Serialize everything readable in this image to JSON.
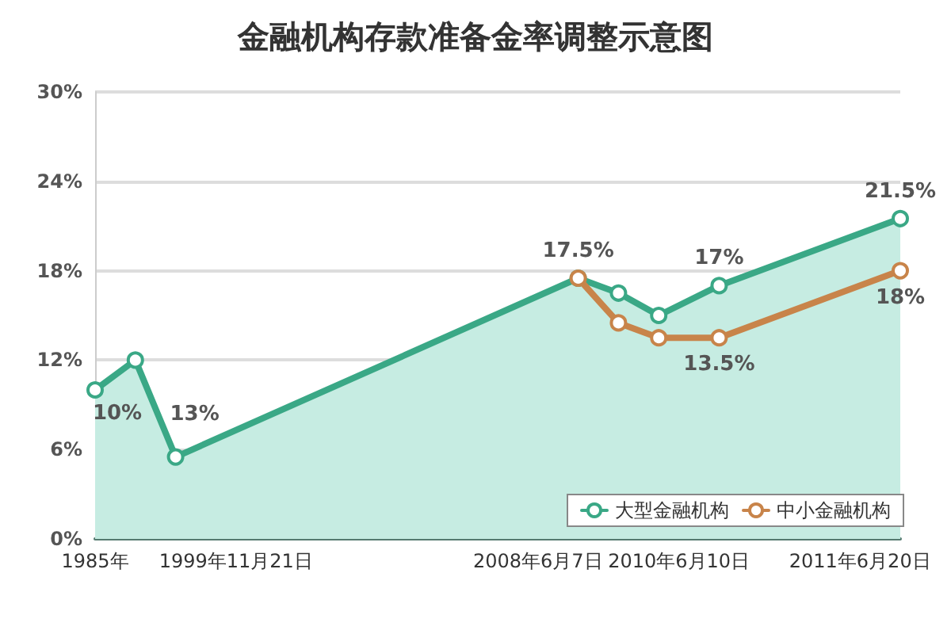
{
  "chart_data": {
    "type": "line",
    "title": "金融机构存款准备金率调整示意图",
    "categories": [
      "1985年",
      null,
      null,
      null,
      null,
      null,
      null,
      "1999年11月21日",
      null,
      null,
      null,
      null,
      null,
      null,
      null,
      null,
      null,
      null,
      null,
      null,
      null,
      null,
      "2008年6月7日",
      null,
      null,
      null,
      null,
      null,
      null,
      "2010年6月10日",
      null,
      null,
      null,
      null,
      null,
      null,
      null,
      null,
      "2011年6月20日",
      null,
      null
    ],
    "series": [
      {
        "name": "大型金融机构",
        "type": "area",
        "color": "#3aa886",
        "values": [
          10,
          null,
          12,
          null,
          5.5,
          null,
          null,
          null,
          null,
          null,
          null,
          null,
          null,
          null,
          null,
          null,
          null,
          null,
          null,
          null,
          null,
          null,
          null,
          null,
          17.5,
          null,
          16.5,
          null,
          15,
          null,
          null,
          17,
          null,
          null,
          null,
          null,
          null,
          null,
          null,
          null,
          21.5
        ],
        "value_labels": [
          "10%",
          null,
          null,
          null,
          null,
          null,
          null,
          null,
          null,
          null,
          null,
          null,
          null,
          null,
          null,
          null,
          null,
          null,
          null,
          null,
          null,
          null,
          null,
          null,
          "17.5%",
          null,
          null,
          null,
          null,
          null,
          null,
          "17%",
          null,
          null,
          null,
          null,
          null,
          null,
          null,
          null,
          "21.5%"
        ]
      },
      {
        "name": "中小金融机构",
        "color": "#c8844a",
        "values": [
          null,
          null,
          null,
          null,
          null,
          null,
          null,
          null,
          null,
          null,
          null,
          null,
          null,
          null,
          null,
          null,
          null,
          null,
          null,
          null,
          null,
          null,
          null,
          null,
          17.5,
          null,
          14.5,
          null,
          13.5,
          null,
          null,
          13.5,
          null,
          null,
          null,
          null,
          null,
          null,
          null,
          null,
          18
        ],
        "value_labels": [
          null,
          null,
          null,
          null,
          null,
          null,
          null,
          null,
          null,
          null,
          null,
          null,
          null,
          null,
          null,
          null,
          null,
          null,
          null,
          null,
          null,
          null,
          null,
          null,
          null,
          null,
          null,
          null,
          null,
          null,
          null,
          "13.5%",
          null,
          null,
          null,
          null,
          null,
          null,
          null,
          null,
          "18%"
        ]
      }
    ],
    "annotations": [
      "13%"
    ],
    "ylim": [
      0,
      30
    ],
    "yticks": [
      {
        "value": 0,
        "label": "0%"
      },
      {
        "value": 6,
        "label": "6%"
      },
      {
        "value": 12,
        "label": "12%"
      },
      {
        "value": 18,
        "label": "18%"
      },
      {
        "value": 24,
        "label": "24%"
      },
      {
        "value": 30,
        "label": "30%"
      }
    ],
    "grid": "y",
    "legend": "bottom right",
    "marker": "circle",
    "line_style": "solid"
  }
}
